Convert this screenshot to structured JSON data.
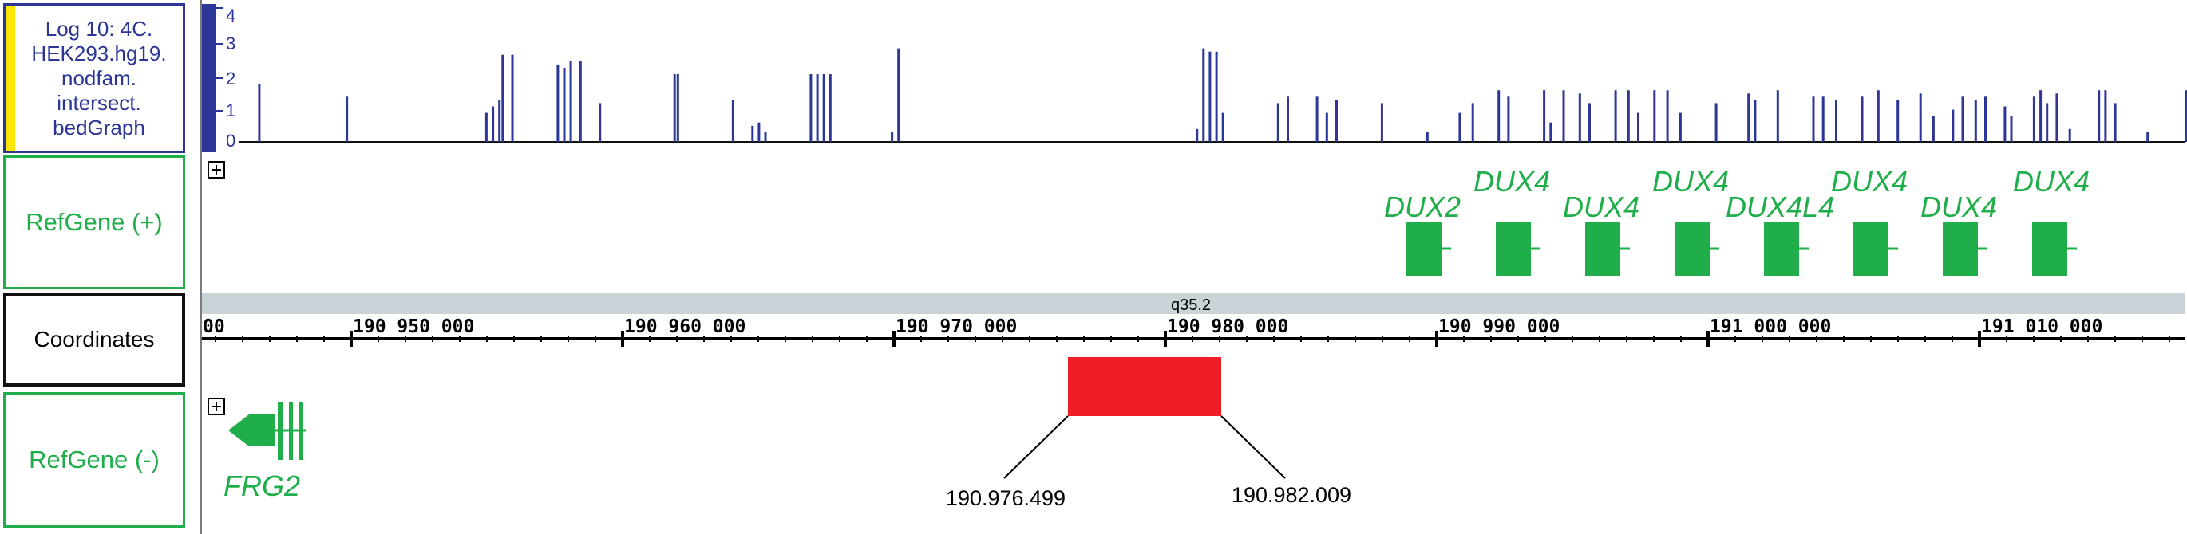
{
  "tracks": {
    "bedgraph": {
      "label": "Log 10: 4C.\nHEK293.hg19.\nnodfam.\nintersect.\nbedGraph"
    },
    "refgene_plus": {
      "label": "RefGene (+)"
    },
    "coordinates": {
      "label": "Coordinates"
    },
    "refgene_minus": {
      "label": "RefGene (-)"
    }
  },
  "colors": {
    "bar": "#2b3696",
    "gene": "#1fae4a",
    "highlight": "#ee1c25",
    "band": "#c9d3d8",
    "stripe": "#ffe600"
  },
  "y_axis": {
    "ticks": [
      "4",
      "3",
      "2",
      "1",
      "0"
    ]
  },
  "genes_plus": [
    "DUX2",
    "DUX4",
    "DUX4",
    "DUX4",
    "DUX4L4",
    "DUX4",
    "DUX4",
    "DUX4"
  ],
  "genes_minus": [
    "FRG2"
  ],
  "band": "q35.2",
  "ruler_ticks": [
    "00",
    "190 950 000",
    "190 960 000",
    "190 970 000",
    "190 980 000",
    "190 990 000",
    "191 000 000",
    "191 010 000"
  ],
  "region": {
    "start": "190.976.499",
    "end": "190.982.009"
  },
  "icons": {
    "expand": "plus-square-icon"
  },
  "chart_data": {
    "type": "bar",
    "ylim": [
      0,
      4.2
    ],
    "values": [
      [
        0.1,
        0.1
      ],
      [
        6,
        1.8
      ],
      [
        33,
        1.4
      ],
      [
        76,
        0.9
      ],
      [
        78,
        1.1
      ],
      [
        80,
        1.3
      ],
      [
        81,
        2.7
      ],
      [
        84,
        2.7
      ],
      [
        98,
        2.4
      ],
      [
        100,
        2.3
      ],
      [
        102,
        2.5
      ],
      [
        105,
        2.5
      ],
      [
        111,
        1.2
      ],
      [
        134,
        2.1
      ],
      [
        135,
        2.1
      ],
      [
        152,
        1.3
      ],
      [
        158,
        0.5
      ],
      [
        160,
        0.6
      ],
      [
        162,
        0.3
      ],
      [
        176,
        2.1
      ],
      [
        178,
        2.1
      ],
      [
        180,
        2.1
      ],
      [
        182,
        2.1
      ],
      [
        201,
        0.3
      ],
      [
        203,
        2.9
      ],
      [
        295,
        0.4
      ],
      [
        297,
        2.9
      ],
      [
        299,
        2.8
      ],
      [
        301,
        2.8
      ],
      [
        303,
        0.9
      ],
      [
        320,
        1.2
      ],
      [
        323,
        1.4
      ],
      [
        332,
        1.4
      ],
      [
        335,
        0.9
      ],
      [
        338,
        1.3
      ],
      [
        352,
        1.2
      ],
      [
        366,
        0.3
      ],
      [
        376,
        0.9
      ],
      [
        380,
        1.2
      ],
      [
        388,
        1.6
      ],
      [
        391,
        1.4
      ],
      [
        402,
        1.6
      ],
      [
        404,
        0.6
      ],
      [
        408,
        1.6
      ],
      [
        413,
        1.5
      ],
      [
        416,
        1.2
      ],
      [
        424,
        1.6
      ],
      [
        428,
        1.6
      ],
      [
        431,
        0.9
      ],
      [
        436,
        1.6
      ],
      [
        440,
        1.6
      ],
      [
        444,
        0.9
      ],
      [
        455,
        1.2
      ],
      [
        465,
        1.5
      ],
      [
        467,
        1.3
      ],
      [
        474,
        1.6
      ],
      [
        485,
        1.4
      ],
      [
        488,
        1.4
      ],
      [
        492,
        1.3
      ],
      [
        500,
        1.4
      ],
      [
        505,
        1.6
      ],
      [
        511,
        1.3
      ],
      [
        518,
        1.5
      ],
      [
        522,
        0.8
      ],
      [
        528,
        1.0
      ],
      [
        531,
        1.4
      ],
      [
        535,
        1.3
      ],
      [
        538,
        1.4
      ],
      [
        544,
        1.1
      ],
      [
        546,
        0.8
      ],
      [
        553,
        1.4
      ],
      [
        555,
        1.6
      ],
      [
        557,
        1.2
      ],
      [
        560,
        1.5
      ],
      [
        564,
        0.4
      ],
      [
        573,
        1.6
      ],
      [
        575,
        1.6
      ],
      [
        578,
        1.2
      ],
      [
        588,
        0.3
      ],
      [
        600,
        1.6
      ]
    ]
  }
}
